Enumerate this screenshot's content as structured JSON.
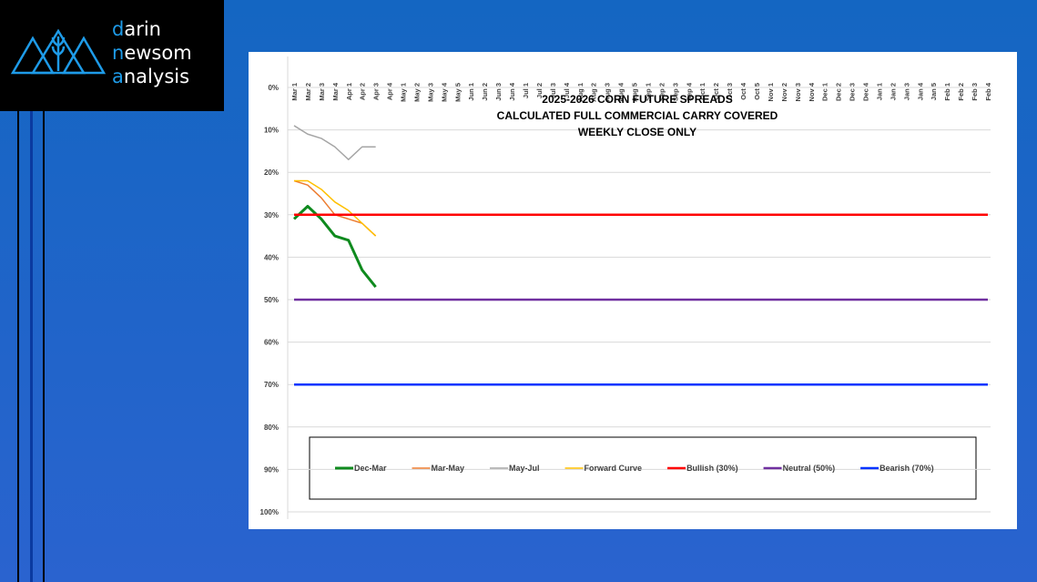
{
  "logo": {
    "lines": [
      "darin",
      "newsom",
      "analysis"
    ]
  },
  "chart_data": {
    "type": "line",
    "title": [
      "2025-2026 CORN FUTURE SPREADS",
      "CALCULATED FULL COMMERCIAL CARRY COVERED",
      "WEEKLY CLOSE ONLY"
    ],
    "categories": [
      "Mar 1",
      "Mar 2",
      "Mar 3",
      "Mar 4",
      "Apr 1",
      "Apr 2",
      "Apr 3",
      "Apr 4",
      "May 1",
      "May 2",
      "May 3",
      "May 4",
      "May 5",
      "Jun 1",
      "Jun 2",
      "Jun 3",
      "Jun 4",
      "Jul 1",
      "Jul 2",
      "Jul 3",
      "Jul 4",
      "Aug 1",
      "Aug 2",
      "Aug 3",
      "Aug 4",
      "Aug 5",
      "Sep 1",
      "Sep 2",
      "Sep 3",
      "Sep 4",
      "Oct 1",
      "Oct 2",
      "Oct 3",
      "Oct 4",
      "Oct 5",
      "Nov 1",
      "Nov 2",
      "Nov 3",
      "Nov 4",
      "Dec 1",
      "Dec 2",
      "Dec 3",
      "Dec 4",
      "Jan 1",
      "Jan 2",
      "Jan 3",
      "Jan 4",
      "Jan 5",
      "Feb 1",
      "Feb 2",
      "Feb 3",
      "Feb 4"
    ],
    "series": [
      {
        "name": "Dec-Mar",
        "color": "#0f8a1e",
        "width": 3,
        "values": [
          31,
          28,
          31,
          35,
          36,
          43,
          47,
          null,
          null,
          null,
          null,
          null,
          null,
          null,
          null,
          null,
          null,
          null,
          null,
          null,
          null,
          null,
          null,
          null,
          null,
          null,
          null,
          null,
          null,
          null,
          null,
          null,
          null,
          null,
          null,
          null,
          null,
          null,
          null,
          null,
          null,
          null,
          null,
          null,
          null,
          null,
          null,
          null,
          null,
          null,
          null,
          null
        ]
      },
      {
        "name": "Mar-May",
        "color": "#ed7d31",
        "width": 1.5,
        "values": [
          22,
          23,
          26,
          30,
          31,
          32,
          35,
          null,
          null,
          null,
          null,
          null,
          null,
          null,
          null,
          null,
          null,
          null,
          null,
          null,
          null,
          null,
          null,
          null,
          null,
          null,
          null,
          null,
          null,
          null,
          null,
          null,
          null,
          null,
          null,
          null,
          null,
          null,
          null,
          null,
          null,
          null,
          null,
          null,
          null,
          null,
          null,
          null,
          null,
          null,
          null,
          null
        ]
      },
      {
        "name": "May-Jul",
        "color": "#a5a5a5",
        "width": 1.5,
        "values": [
          9,
          11,
          12,
          14,
          17,
          14,
          14,
          null,
          null,
          null,
          null,
          null,
          null,
          null,
          null,
          null,
          null,
          null,
          null,
          null,
          null,
          null,
          null,
          null,
          null,
          null,
          null,
          null,
          null,
          null,
          null,
          null,
          null,
          null,
          null,
          null,
          null,
          null,
          null,
          null,
          null,
          null,
          null,
          null,
          null,
          null,
          null,
          null,
          null,
          null,
          null,
          null
        ]
      },
      {
        "name": "Forward Curve",
        "color": "#ffc000",
        "width": 1.5,
        "values": [
          22,
          22,
          24,
          27,
          29,
          32,
          35,
          null,
          null,
          null,
          null,
          null,
          null,
          null,
          null,
          null,
          null,
          null,
          null,
          null,
          null,
          null,
          null,
          null,
          null,
          null,
          null,
          null,
          null,
          null,
          null,
          null,
          null,
          null,
          null,
          null,
          null,
          null,
          null,
          null,
          null,
          null,
          null,
          null,
          null,
          null,
          null,
          null,
          null,
          null,
          null,
          null
        ]
      },
      {
        "name": "Bullish (30%)",
        "color": "#ff0000",
        "width": 2.5,
        "values": [
          30,
          30,
          30,
          30,
          30,
          30,
          30,
          30,
          30,
          30,
          30,
          30,
          30,
          30,
          30,
          30,
          30,
          30,
          30,
          30,
          30,
          30,
          30,
          30,
          30,
          30,
          30,
          30,
          30,
          30,
          30,
          30,
          30,
          30,
          30,
          30,
          30,
          30,
          30,
          30,
          30,
          30,
          30,
          30,
          30,
          30,
          30,
          30,
          30,
          30,
          30,
          30
        ]
      },
      {
        "name": "Neutral (50%)",
        "color": "#7030a0",
        "width": 2.5,
        "values": [
          50,
          50,
          50,
          50,
          50,
          50,
          50,
          50,
          50,
          50,
          50,
          50,
          50,
          50,
          50,
          50,
          50,
          50,
          50,
          50,
          50,
          50,
          50,
          50,
          50,
          50,
          50,
          50,
          50,
          50,
          50,
          50,
          50,
          50,
          50,
          50,
          50,
          50,
          50,
          50,
          50,
          50,
          50,
          50,
          50,
          50,
          50,
          50,
          50,
          50,
          50,
          50
        ]
      },
      {
        "name": "Bearish (70%)",
        "color": "#0033ff",
        "width": 2.5,
        "values": [
          70,
          70,
          70,
          70,
          70,
          70,
          70,
          70,
          70,
          70,
          70,
          70,
          70,
          70,
          70,
          70,
          70,
          70,
          70,
          70,
          70,
          70,
          70,
          70,
          70,
          70,
          70,
          70,
          70,
          70,
          70,
          70,
          70,
          70,
          70,
          70,
          70,
          70,
          70,
          70,
          70,
          70,
          70,
          70,
          70,
          70,
          70,
          70,
          70,
          70,
          70,
          70
        ]
      }
    ],
    "ylim": [
      0,
      100
    ],
    "y_inverted": true,
    "yticks": [
      {
        "value": 0,
        "label": "0%"
      },
      {
        "value": 10,
        "label": "10%"
      },
      {
        "value": 20,
        "label": "20%"
      },
      {
        "value": 30,
        "label": "30%"
      },
      {
        "value": 40,
        "label": "40%"
      },
      {
        "value": 50,
        "label": "50%"
      },
      {
        "value": 60,
        "label": "60%"
      },
      {
        "value": 70,
        "label": "70%"
      },
      {
        "value": 80,
        "label": "80%"
      },
      {
        "value": 90,
        "label": "90%"
      },
      {
        "value": 100,
        "label": "100%"
      }
    ],
    "grid": true,
    "legend": "bottom"
  }
}
